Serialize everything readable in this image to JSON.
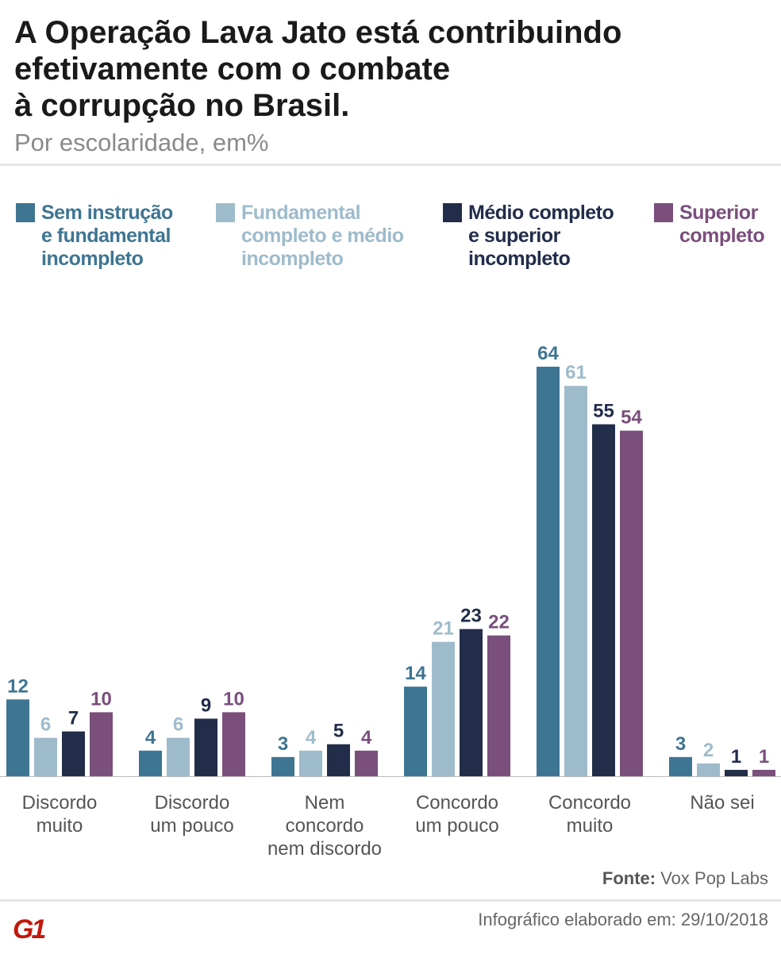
{
  "title": [
    "A Operação Lava Jato está contribuindo",
    "efetivamente com o combate",
    "à corrupção no Brasil."
  ],
  "subtitle": "Por escolaridade, em%",
  "chart_data": {
    "type": "bar",
    "categories": [
      "Discordo\nmuito",
      "Discordo\num pouco",
      "Nem\nconcordo\nnem discordo",
      "Concordo\num pouco",
      "Concordo\nmuito",
      "Não sei"
    ],
    "series": [
      {
        "name": "Sem instrução\ne fundamental\nincompleto",
        "color": "#3e7592",
        "values": [
          12,
          4,
          3,
          14,
          64,
          3
        ]
      },
      {
        "name": "Fundamental\ncompleto e médio\nincompleto",
        "color": "#9ebbcb",
        "values": [
          6,
          6,
          4,
          21,
          61,
          2
        ]
      },
      {
        "name": "Médio completo\ne superior\nincompleto",
        "color": "#222d4a",
        "values": [
          7,
          9,
          5,
          23,
          55,
          1
        ]
      },
      {
        "name": "Superior\ncompleto",
        "color": "#7a4f7c",
        "values": [
          10,
          10,
          4,
          22,
          54,
          1
        ]
      }
    ],
    "ylim": [
      0,
      64
    ],
    "grid": false,
    "legend_position": "top",
    "data_labels": true
  },
  "footer": {
    "source_label": "Fonte:",
    "source": "Vox Pop Labs",
    "date_text": "Infográfico elaborado em: 29/10/2018",
    "logo": "G1"
  }
}
